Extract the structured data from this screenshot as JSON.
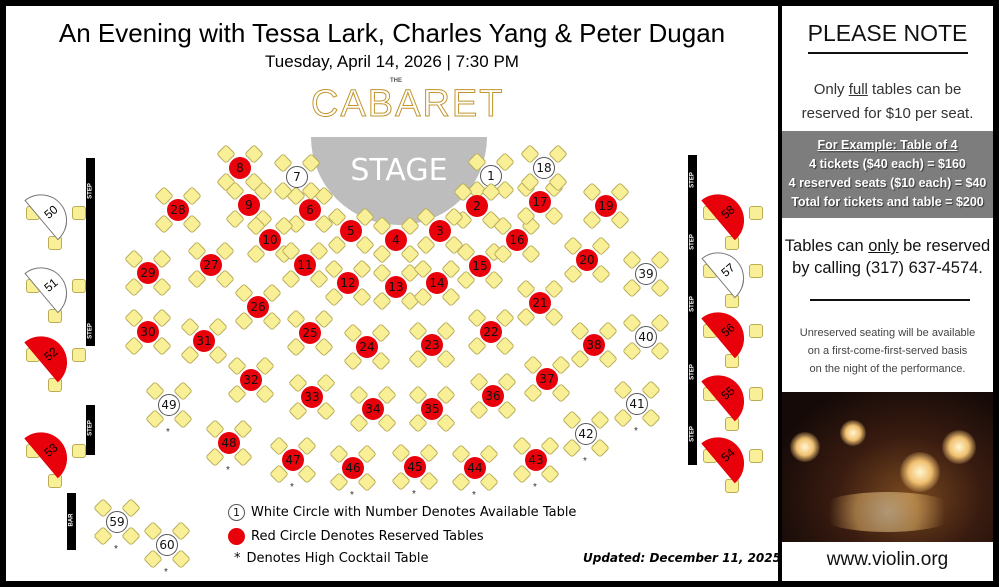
{
  "header": {
    "title": "An Evening with Tessa Lark, Charles Yang & Peter Dugan",
    "date": "Tuesday, April 14, 2026 | 7:30 PM"
  },
  "logo": {
    "the": "THE",
    "name": "CABARET",
    "tm": "™"
  },
  "stage": {
    "label": "STAGE"
  },
  "labels": {
    "step": "STEP",
    "bar": "BAR"
  },
  "colors": {
    "reserved": "#e8000b",
    "available": "#ffffff",
    "chair": "#f8ef96",
    "logo": "#c2952d"
  },
  "tables": [
    {
      "n": "1",
      "status": "available"
    },
    {
      "n": "2",
      "status": "reserved"
    },
    {
      "n": "3",
      "status": "reserved"
    },
    {
      "n": "4",
      "status": "reserved"
    },
    {
      "n": "5",
      "status": "reserved"
    },
    {
      "n": "6",
      "status": "reserved"
    },
    {
      "n": "7",
      "status": "available"
    },
    {
      "n": "8",
      "status": "reserved"
    },
    {
      "n": "9",
      "status": "reserved"
    },
    {
      "n": "10",
      "status": "reserved"
    },
    {
      "n": "11",
      "status": "reserved"
    },
    {
      "n": "12",
      "status": "reserved"
    },
    {
      "n": "13",
      "status": "reserved"
    },
    {
      "n": "14",
      "status": "reserved"
    },
    {
      "n": "15",
      "status": "reserved"
    },
    {
      "n": "16",
      "status": "reserved"
    },
    {
      "n": "17",
      "status": "reserved"
    },
    {
      "n": "18",
      "status": "available"
    },
    {
      "n": "19",
      "status": "reserved"
    },
    {
      "n": "20",
      "status": "reserved"
    },
    {
      "n": "21",
      "status": "reserved"
    },
    {
      "n": "22",
      "status": "reserved"
    },
    {
      "n": "23",
      "status": "reserved"
    },
    {
      "n": "24",
      "status": "reserved"
    },
    {
      "n": "25",
      "status": "reserved"
    },
    {
      "n": "26",
      "status": "reserved"
    },
    {
      "n": "27",
      "status": "reserved"
    },
    {
      "n": "28",
      "status": "reserved"
    },
    {
      "n": "29",
      "status": "reserved"
    },
    {
      "n": "30",
      "status": "reserved"
    },
    {
      "n": "31",
      "status": "reserved"
    },
    {
      "n": "32",
      "status": "reserved"
    },
    {
      "n": "33",
      "status": "reserved"
    },
    {
      "n": "34",
      "status": "reserved"
    },
    {
      "n": "35",
      "status": "reserved"
    },
    {
      "n": "36",
      "status": "reserved"
    },
    {
      "n": "37",
      "status": "reserved"
    },
    {
      "n": "38",
      "status": "reserved"
    },
    {
      "n": "39",
      "status": "available"
    },
    {
      "n": "40",
      "status": "available"
    },
    {
      "n": "41",
      "status": "available",
      "cocktail": true
    },
    {
      "n": "42",
      "status": "available",
      "cocktail": true
    },
    {
      "n": "43",
      "status": "reserved",
      "cocktail": true
    },
    {
      "n": "44",
      "status": "reserved",
      "cocktail": true
    },
    {
      "n": "45",
      "status": "reserved",
      "cocktail": true
    },
    {
      "n": "46",
      "status": "reserved",
      "cocktail": true
    },
    {
      "n": "47",
      "status": "reserved",
      "cocktail": true
    },
    {
      "n": "48",
      "status": "reserved",
      "cocktail": true
    },
    {
      "n": "49",
      "status": "available",
      "cocktail": true
    },
    {
      "n": "50",
      "status": "available"
    },
    {
      "n": "51",
      "status": "available"
    },
    {
      "n": "52",
      "status": "reserved"
    },
    {
      "n": "53",
      "status": "reserved"
    },
    {
      "n": "54",
      "status": "reserved"
    },
    {
      "n": "55",
      "status": "reserved"
    },
    {
      "n": "56",
      "status": "reserved"
    },
    {
      "n": "57",
      "status": "available"
    },
    {
      "n": "58",
      "status": "reserved"
    },
    {
      "n": "59",
      "status": "available",
      "cocktail": true
    },
    {
      "n": "60",
      "status": "available",
      "cocktail": true
    }
  ],
  "legend": {
    "available_sample": "1",
    "available": "White Circle with Number Denotes Available Table",
    "reserved": "Red Circle Denotes Reserved Tables",
    "cocktail_mark": "*",
    "cocktail": "Denotes High Cocktail Table"
  },
  "updated": "Updated: December 11, 2025",
  "sidebar": {
    "heading": "PLEASE NOTE",
    "note_line1_pre": "Only ",
    "note_line1_em": "full",
    "note_line1_post": " tables can be",
    "note_line2": "reserved for $10 per seat.",
    "example": {
      "title": "For Example: Table of 4",
      "lines": [
        "4 tickets ($40 each) = $160",
        "4 reserved seats ($10 each) = $40",
        "Total for tickets and table = $200"
      ]
    },
    "call_pre": "Tables can ",
    "call_em": "only",
    "call_post": " be reserved",
    "call_line2": "by calling (317) 637-4574.",
    "unreserved": [
      "Unreserved seating will be available",
      "on a first-come-first-served basis",
      "on the night of the performance."
    ],
    "website": "www.violin.org"
  }
}
